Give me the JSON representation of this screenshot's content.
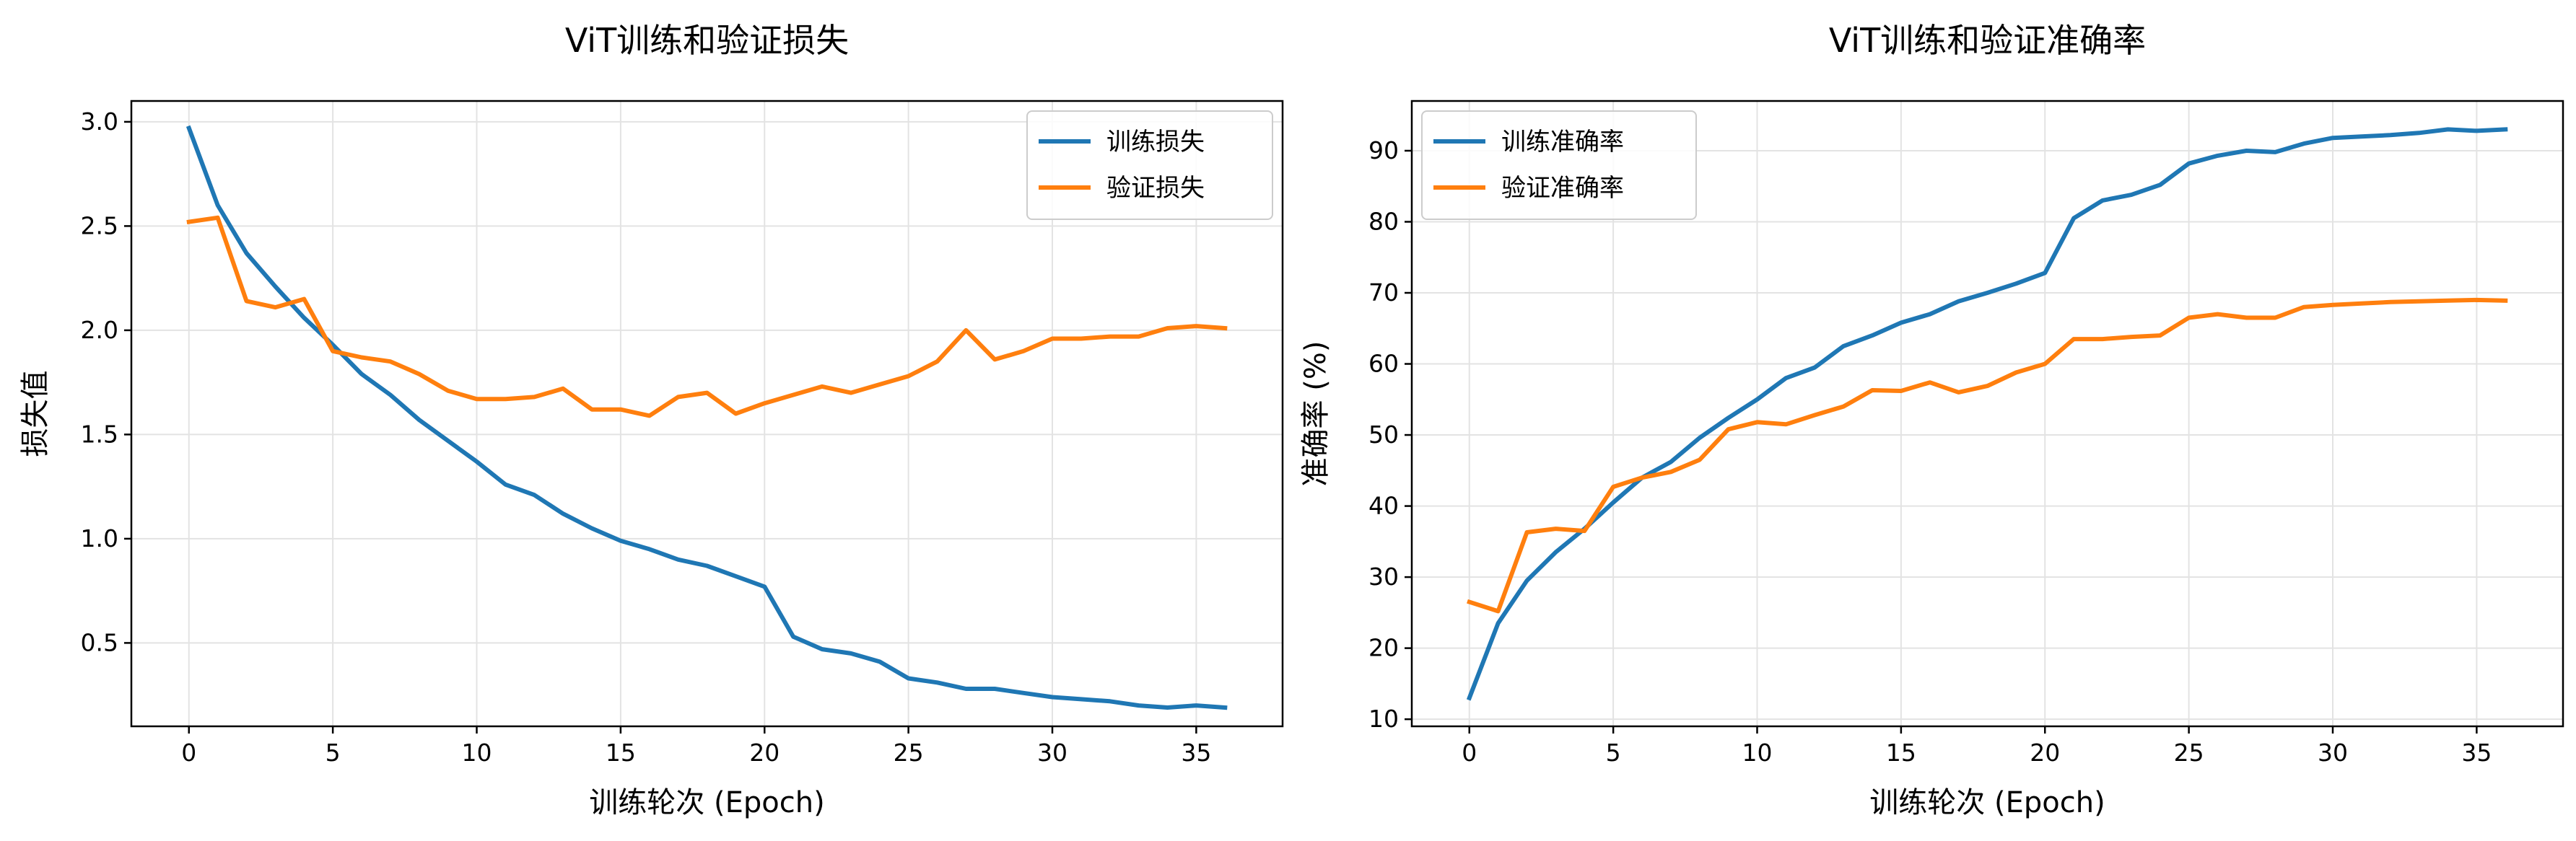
{
  "chart_data": [
    {
      "type": "line",
      "title": "ViT训练和验证损失",
      "xlabel": "训练轮次 (Epoch)",
      "ylabel": "损失值",
      "xlim": [
        -2,
        38
      ],
      "ylim": [
        0.1,
        3.1
      ],
      "xticks": [
        0,
        5,
        10,
        15,
        20,
        25,
        30,
        35
      ],
      "yticks": [
        0.5,
        1.0,
        1.5,
        2.0,
        2.5,
        3.0
      ],
      "ytick_labels": [
        "0.5",
        "1.0",
        "1.5",
        "2.0",
        "2.5",
        "3.0"
      ],
      "grid": true,
      "legend_position": "top-right",
      "x": [
        0,
        1,
        2,
        3,
        4,
        5,
        6,
        7,
        8,
        9,
        10,
        11,
        12,
        13,
        14,
        15,
        16,
        17,
        18,
        19,
        20,
        21,
        22,
        23,
        24,
        25,
        26,
        27,
        28,
        29,
        30,
        31,
        32,
        33,
        34,
        35,
        36
      ],
      "series": [
        {
          "name": "训练损失",
          "color": "#1f77b4",
          "values": [
            2.97,
            2.6,
            2.37,
            2.21,
            2.06,
            1.93,
            1.79,
            1.69,
            1.57,
            1.47,
            1.37,
            1.26,
            1.21,
            1.12,
            1.05,
            0.99,
            0.95,
            0.9,
            0.87,
            0.82,
            0.77,
            0.53,
            0.47,
            0.45,
            0.41,
            0.33,
            0.31,
            0.28,
            0.28,
            0.26,
            0.24,
            0.23,
            0.22,
            0.2,
            0.19,
            0.2,
            0.19
          ]
        },
        {
          "name": "验证损失",
          "color": "#ff7f0e",
          "values": [
            2.52,
            2.54,
            2.14,
            2.11,
            2.15,
            1.9,
            1.87,
            1.85,
            1.79,
            1.71,
            1.67,
            1.67,
            1.68,
            1.72,
            1.62,
            1.62,
            1.59,
            1.68,
            1.7,
            1.6,
            1.65,
            1.69,
            1.73,
            1.7,
            1.74,
            1.78,
            1.85,
            2.0,
            1.86,
            1.9,
            1.96,
            1.96,
            1.97,
            1.97,
            2.01,
            2.02,
            2.01
          ]
        }
      ]
    },
    {
      "type": "line",
      "title": "ViT训练和验证准确率",
      "xlabel": "训练轮次 (Epoch)",
      "ylabel": "准确率 (%)",
      "xlim": [
        -2,
        38
      ],
      "ylim": [
        9,
        97
      ],
      "xticks": [
        0,
        5,
        10,
        15,
        20,
        25,
        30,
        35
      ],
      "yticks": [
        10,
        20,
        30,
        40,
        50,
        60,
        70,
        80,
        90
      ],
      "ytick_labels": [
        "10",
        "20",
        "30",
        "40",
        "50",
        "60",
        "70",
        "80",
        "90"
      ],
      "grid": true,
      "legend_position": "top-left",
      "x": [
        0,
        1,
        2,
        3,
        4,
        5,
        6,
        7,
        8,
        9,
        10,
        11,
        12,
        13,
        14,
        15,
        16,
        17,
        18,
        19,
        20,
        21,
        22,
        23,
        24,
        25,
        26,
        27,
        28,
        29,
        30,
        31,
        32,
        33,
        34,
        35,
        36
      ],
      "series": [
        {
          "name": "训练准确率",
          "color": "#1f77b4",
          "values": [
            13.0,
            23.5,
            29.5,
            33.5,
            36.8,
            40.5,
            44.0,
            46.2,
            49.6,
            52.4,
            55.0,
            58.0,
            59.5,
            62.5,
            64.0,
            65.8,
            67.0,
            68.8,
            70.0,
            71.3,
            72.8,
            80.5,
            83.0,
            83.8,
            85.2,
            88.2,
            89.3,
            90.0,
            89.8,
            91.0,
            91.8,
            92.0,
            92.2,
            92.5,
            93.0,
            92.8,
            93.0
          ]
        },
        {
          "name": "验证准确率",
          "color": "#ff7f0e",
          "values": [
            26.5,
            25.2,
            36.3,
            36.8,
            36.5,
            42.7,
            44.0,
            44.8,
            46.5,
            50.8,
            51.8,
            51.5,
            52.8,
            54.0,
            56.3,
            56.2,
            57.4,
            56.0,
            56.9,
            58.8,
            60.0,
            63.5,
            63.5,
            63.8,
            64.0,
            66.5,
            67.0,
            66.5,
            66.5,
            68.0,
            68.3,
            68.5,
            68.7,
            68.8,
            68.9,
            69.0,
            68.9
          ]
        }
      ]
    }
  ]
}
